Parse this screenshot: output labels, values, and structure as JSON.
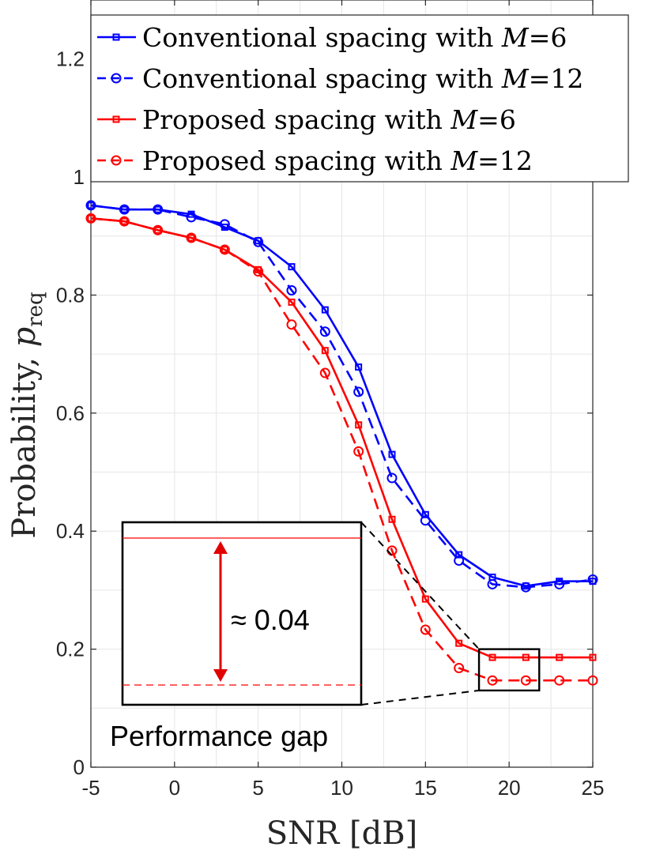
{
  "chart_data": {
    "type": "line",
    "title": "",
    "xlabel": "SNR [dB]",
    "ylabel_main": "Probability, ",
    "ylabel_var": "p",
    "ylabel_sub": "req",
    "xlim": [
      -5,
      25
    ],
    "ylim": [
      0,
      1.3
    ],
    "x_ticks": [
      -5,
      0,
      5,
      10,
      15,
      20,
      25
    ],
    "y_ticks": [
      0,
      0.2,
      0.4,
      0.6,
      0.8,
      1,
      1.2
    ],
    "y_tick_labels": [
      "0",
      "0.2",
      "0.4",
      "0.6",
      "0.8",
      "1",
      "1.2"
    ],
    "x_tick_labels": [
      "-5",
      "0",
      "5",
      "10",
      "15",
      "20",
      "25"
    ],
    "grid": true,
    "legend_position": "top-right",
    "x": [
      -5,
      -3,
      -1,
      1,
      3,
      5,
      7,
      9,
      11,
      13,
      15,
      17,
      19,
      21,
      23,
      25
    ],
    "series": [
      {
        "name": "Conventional spacing with M=6",
        "legend_prefix": "Conventional spacing with ",
        "legend_var": "M",
        "legend_suffix": "=6",
        "color": "#0000ff",
        "dash": "solid",
        "marker": "square",
        "values": [
          0.952,
          0.945,
          0.945,
          0.937,
          0.915,
          0.892,
          0.848,
          0.775,
          0.678,
          0.53,
          0.428,
          0.36,
          0.322,
          0.307,
          0.315,
          0.315
        ]
      },
      {
        "name": "Conventional spacing with M=12",
        "legend_prefix": "Conventional spacing with ",
        "legend_var": "M",
        "legend_suffix": "=12",
        "color": "#0000ff",
        "dash": "dashed",
        "marker": "circle",
        "values": [
          0.952,
          0.945,
          0.945,
          0.932,
          0.92,
          0.89,
          0.808,
          0.738,
          0.636,
          0.49,
          0.418,
          0.35,
          0.31,
          0.305,
          0.31,
          0.318
        ]
      },
      {
        "name": "Proposed spacing with M=6",
        "legend_prefix": "Proposed spacing with ",
        "legend_var": "M",
        "legend_suffix": "=6",
        "color": "#ff0000",
        "dash": "solid",
        "marker": "square",
        "values": [
          0.93,
          0.925,
          0.91,
          0.897,
          0.877,
          0.843,
          0.788,
          0.706,
          0.58,
          0.42,
          0.285,
          0.21,
          0.186,
          0.186,
          0.186,
          0.186
        ]
      },
      {
        "name": "Proposed spacing with M=12",
        "legend_prefix": "Proposed spacing with ",
        "legend_var": "M",
        "legend_suffix": "=12",
        "color": "#ff0000",
        "dash": "dashed",
        "marker": "circle",
        "values": [
          0.93,
          0.925,
          0.91,
          0.897,
          0.877,
          0.84,
          0.75,
          0.668,
          0.535,
          0.367,
          0.233,
          0.168,
          0.147,
          0.147,
          0.147,
          0.147
        ]
      }
    ],
    "annotations": {
      "zoom_region": {
        "x_range": [
          18.2,
          21.8
        ],
        "y_range": [
          0.13,
          0.2
        ]
      },
      "inset_gap_label": "≈ 0.04",
      "inset_caption": "Performance gap",
      "gap_value": 0.04,
      "inset_solid_level": 0.186,
      "inset_dashed_level": 0.147
    }
  }
}
